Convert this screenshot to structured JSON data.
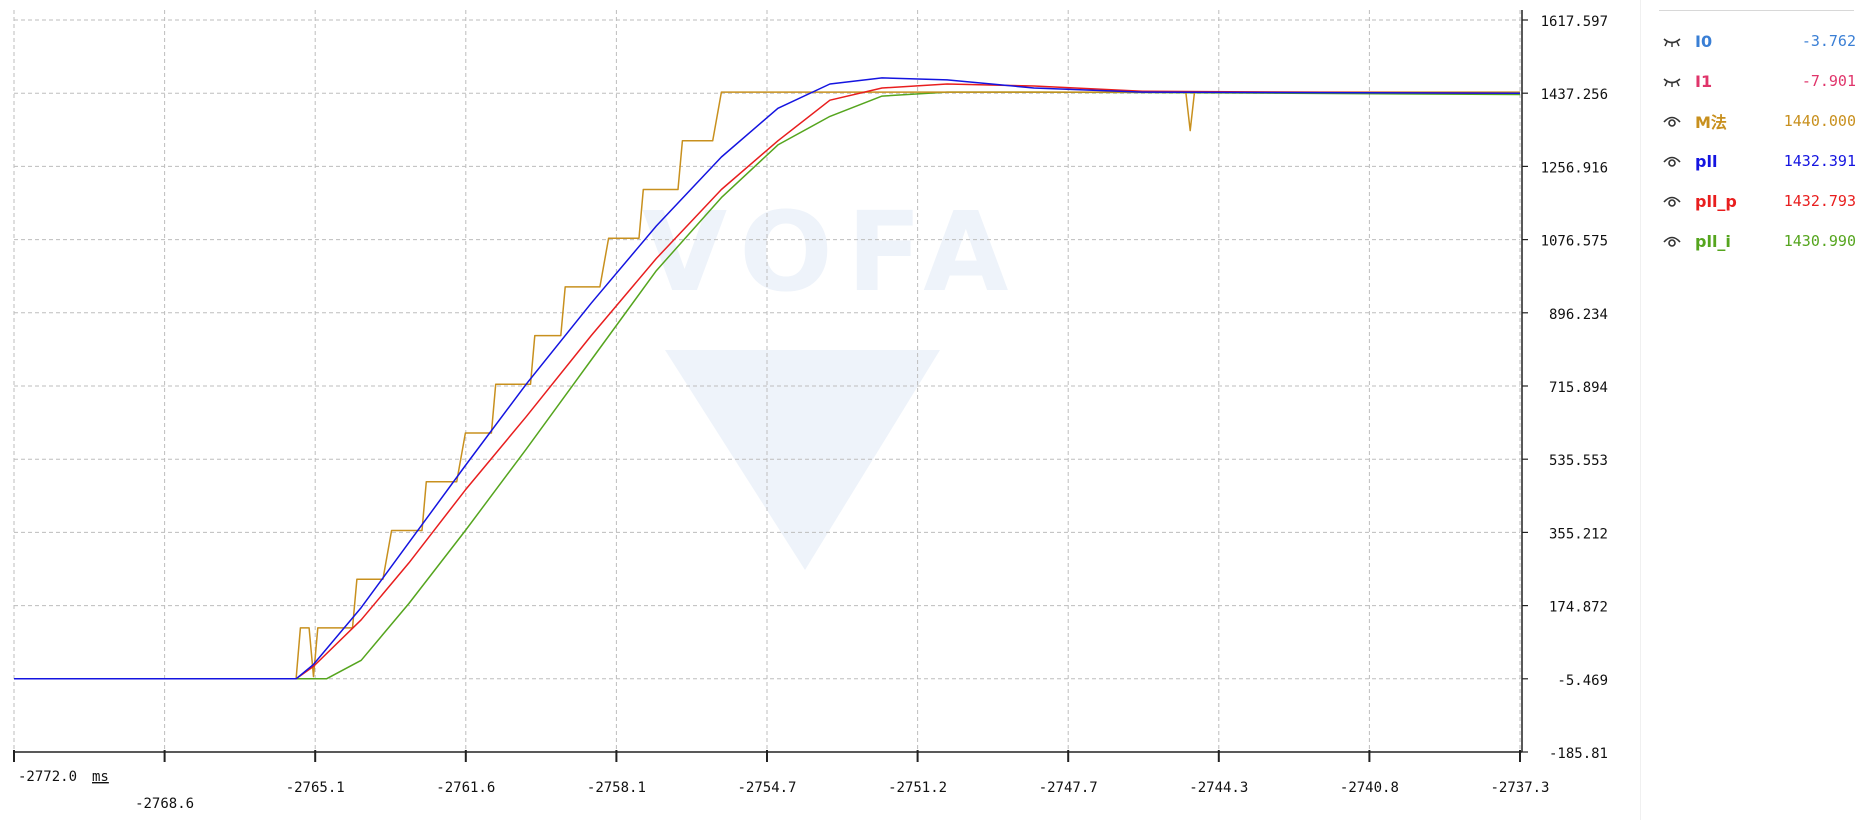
{
  "chart_data": {
    "type": "line",
    "title": "",
    "x_unit": "ms",
    "x_ticks": [
      "-2772.0",
      "-2768.6",
      "-2765.1",
      "-2761.6",
      "-2758.1",
      "-2754.7",
      "-2751.2",
      "-2747.7",
      "-2744.3",
      "-2740.8",
      "-2737.3"
    ],
    "y_ticks": [
      "1617.597",
      "1437.256",
      "1256.916",
      "1076.575",
      "896.234",
      "715.894",
      "535.553",
      "355.212",
      "174.872",
      "-5.469",
      "-185.81"
    ],
    "xlim": [
      -2772.0,
      -2737.3
    ],
    "ylim": [
      -185.81,
      1617.597
    ],
    "grid": true,
    "legend_position": "right",
    "watermark": "VOFA",
    "series": [
      {
        "name": "I0",
        "value": "-3.762",
        "color": "#3a7fd5",
        "visible": false,
        "points": []
      },
      {
        "name": "I1",
        "value": "-7.901",
        "color": "#e0356b",
        "visible": false,
        "points": []
      },
      {
        "name": "M法",
        "value": "1440.000",
        "color": "#c8901e",
        "visible": true,
        "points": [
          [
            -2772.0,
            -5.5
          ],
          [
            -2765.5,
            -5.5
          ],
          [
            -2765.4,
            120
          ],
          [
            -2765.2,
            120
          ],
          [
            -2765.1,
            0
          ],
          [
            -2765.0,
            120
          ],
          [
            -2764.2,
            120
          ],
          [
            -2764.1,
            240
          ],
          [
            -2763.5,
            240
          ],
          [
            -2763.3,
            360
          ],
          [
            -2762.6,
            360
          ],
          [
            -2762.5,
            480
          ],
          [
            -2761.8,
            480
          ],
          [
            -2761.6,
            600
          ],
          [
            -2761.0,
            600
          ],
          [
            -2760.9,
            720
          ],
          [
            -2760.1,
            720
          ],
          [
            -2760.0,
            840
          ],
          [
            -2759.4,
            840
          ],
          [
            -2759.3,
            960
          ],
          [
            -2758.5,
            960
          ],
          [
            -2758.3,
            1080
          ],
          [
            -2757.6,
            1080
          ],
          [
            -2757.5,
            1200
          ],
          [
            -2756.7,
            1200
          ],
          [
            -2756.6,
            1320
          ],
          [
            -2755.9,
            1320
          ],
          [
            -2755.7,
            1440
          ],
          [
            -2745.0,
            1440
          ],
          [
            -2744.9,
            1345
          ],
          [
            -2744.8,
            1440
          ],
          [
            -2737.3,
            1440
          ]
        ]
      },
      {
        "name": "pll",
        "value": "1432.391",
        "color": "#1414e0",
        "visible": true,
        "points": [
          [
            -2772.0,
            -5.5
          ],
          [
            -2765.5,
            -5.5
          ],
          [
            -2765.1,
            30
          ],
          [
            -2764.0,
            170
          ],
          [
            -2762.9,
            330
          ],
          [
            -2761.6,
            520
          ],
          [
            -2760.2,
            720
          ],
          [
            -2758.7,
            920
          ],
          [
            -2757.2,
            1110
          ],
          [
            -2755.7,
            1280
          ],
          [
            -2754.4,
            1400
          ],
          [
            -2753.2,
            1460
          ],
          [
            -2752.0,
            1475
          ],
          [
            -2750.5,
            1470
          ],
          [
            -2748.5,
            1450
          ],
          [
            -2746.0,
            1440
          ],
          [
            -2737.3,
            1437
          ]
        ]
      },
      {
        "name": "pll_p",
        "value": "1432.793",
        "color": "#e81e1e",
        "visible": true,
        "points": [
          [
            -2772.0,
            -5.5
          ],
          [
            -2765.5,
            -5.5
          ],
          [
            -2765.1,
            25
          ],
          [
            -2764.0,
            140
          ],
          [
            -2762.9,
            280
          ],
          [
            -2761.6,
            460
          ],
          [
            -2760.2,
            640
          ],
          [
            -2758.7,
            840
          ],
          [
            -2757.2,
            1030
          ],
          [
            -2755.7,
            1200
          ],
          [
            -2754.4,
            1320
          ],
          [
            -2753.2,
            1420
          ],
          [
            -2752.0,
            1450
          ],
          [
            -2750.5,
            1460
          ],
          [
            -2748.5,
            1455
          ],
          [
            -2746.0,
            1442
          ],
          [
            -2737.3,
            1437
          ]
        ]
      },
      {
        "name": "pll_i",
        "value": "1430.990",
        "color": "#55a51e",
        "visible": true,
        "points": [
          [
            -2772.0,
            -5.5
          ],
          [
            -2764.8,
            -5.5
          ],
          [
            -2764.0,
            40
          ],
          [
            -2762.9,
            180
          ],
          [
            -2761.6,
            360
          ],
          [
            -2760.2,
            560
          ],
          [
            -2758.7,
            780
          ],
          [
            -2757.2,
            1000
          ],
          [
            -2755.7,
            1180
          ],
          [
            -2754.4,
            1310
          ],
          [
            -2753.2,
            1380
          ],
          [
            -2752.0,
            1430
          ],
          [
            -2750.5,
            1440
          ],
          [
            -2748.5,
            1440
          ],
          [
            -2746.0,
            1439
          ],
          [
            -2737.3,
            1434
          ]
        ]
      }
    ]
  }
}
